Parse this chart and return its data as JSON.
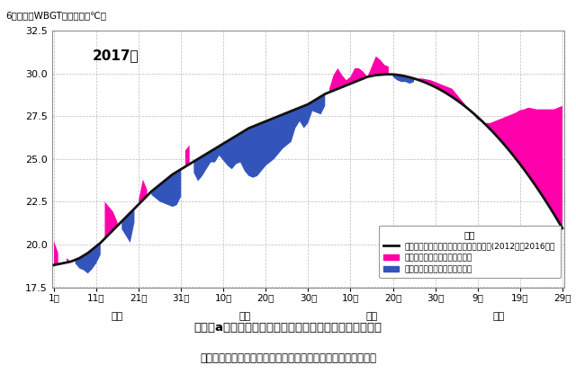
{
  "title_ylabel": "6都市最高WBGTの平均値（℃）",
  "year_label": "2017年",
  "ylim": [
    17.5,
    32.5
  ],
  "yticks": [
    17.5,
    20.0,
    22.5,
    25.0,
    27.5,
    30.0,
    32.5
  ],
  "fig_title": "図１－a　全国の暑さの動向の過去５年間の平均との比較",
  "fig_subtitle": "６都市：東京都、大阪市、名古屋市、新潟市、広島市、福岡市",
  "legend_title": "凡例",
  "legend_line": "６都市の日最高暑さ指数の５年間平均値(2012年〜2016年）",
  "legend_high": "５年間平均値に比べて高い期間",
  "legend_low": "５年間平均値に比べて低い期間",
  "avg_color": "#111111",
  "high_color": "#FF00AA",
  "low_color": "#3355BB",
  "background": "#ffffff",
  "tick_day_labels": [
    "1日",
    "11日",
    "21日",
    "31日",
    "10日",
    "20日",
    "30日",
    "10日",
    "20日",
    "30日",
    "9日",
    "19日",
    "29日"
  ],
  "tick_positions": [
    0,
    10,
    20,
    30,
    40,
    50,
    60,
    70,
    80,
    90,
    100,
    110,
    120
  ],
  "month_labels": [
    "５月",
    "６月",
    "７月",
    "８月"
  ],
  "month_centers": [
    15,
    45,
    75,
    105
  ],
  "avg_values": [
    18.8,
    18.85,
    18.9,
    18.95,
    19.0,
    19.1,
    19.2,
    19.35,
    19.5,
    19.7,
    19.9,
    20.1,
    20.35,
    20.6,
    20.85,
    21.1,
    21.35,
    21.6,
    21.85,
    22.1,
    22.35,
    22.6,
    22.85,
    23.1,
    23.3,
    23.5,
    23.7,
    23.9,
    24.1,
    24.25,
    24.4,
    24.55,
    24.7,
    24.85,
    25.0,
    25.15,
    25.3,
    25.45,
    25.6,
    25.75,
    25.9,
    26.05,
    26.2,
    26.35,
    26.5,
    26.65,
    26.8,
    26.9,
    27.0,
    27.1,
    27.2,
    27.3,
    27.4,
    27.5,
    27.6,
    27.7,
    27.8,
    27.9,
    28.0,
    28.1,
    28.2,
    28.35,
    28.5,
    28.65,
    28.8,
    28.9,
    29.0,
    29.1,
    29.2,
    29.3,
    29.4,
    29.5,
    29.6,
    29.7,
    29.8,
    29.85,
    29.9,
    29.92,
    29.94,
    29.95,
    29.94,
    29.92,
    29.88,
    29.83,
    29.77,
    29.7,
    29.62,
    29.53,
    29.43,
    29.32,
    29.2,
    29.07,
    28.93,
    28.78,
    28.62,
    28.45,
    28.27,
    28.08,
    27.88,
    27.67,
    27.45,
    27.22,
    26.98,
    26.73,
    26.47,
    26.2,
    25.92,
    25.63,
    25.33,
    25.02,
    24.7,
    24.37,
    24.03,
    23.68,
    23.32,
    22.95,
    22.57,
    22.18,
    21.78,
    21.37,
    20.95
  ],
  "cur_values": [
    20.2,
    19.5,
    18.7,
    19.2,
    19.0,
    18.9,
    18.6,
    18.5,
    18.3,
    18.55,
    18.9,
    19.4,
    22.5,
    22.2,
    21.9,
    21.3,
    20.9,
    20.5,
    20.1,
    21.3,
    22.6,
    23.8,
    23.2,
    22.9,
    22.7,
    22.5,
    22.4,
    22.3,
    22.2,
    22.3,
    22.8,
    25.5,
    25.8,
    24.2,
    23.7,
    24.0,
    24.4,
    24.8,
    24.8,
    25.2,
    24.9,
    24.6,
    24.4,
    24.7,
    24.8,
    24.3,
    24.0,
    23.9,
    24.0,
    24.3,
    24.6,
    24.8,
    25.0,
    25.3,
    25.6,
    25.8,
    26.0,
    26.8,
    27.2,
    26.8,
    27.1,
    27.8,
    27.7,
    27.6,
    28.1,
    29.1,
    29.9,
    30.3,
    29.9,
    29.6,
    29.8,
    30.3,
    30.3,
    30.1,
    29.8,
    30.4,
    31.0,
    30.8,
    30.5,
    30.4,
    29.8,
    29.6,
    29.5,
    29.5,
    29.4,
    29.5,
    29.7,
    29.7,
    29.65,
    29.6,
    29.5,
    29.4,
    29.3,
    29.2,
    29.1,
    28.8,
    28.5,
    28.2,
    27.9,
    27.6,
    27.3,
    27.2,
    27.1,
    27.1,
    27.2,
    27.3,
    27.4,
    27.5,
    27.6,
    27.7,
    27.85,
    27.9,
    28.0,
    27.95,
    27.9,
    27.9,
    27.9,
    27.9,
    27.9,
    28.0,
    28.1
  ]
}
